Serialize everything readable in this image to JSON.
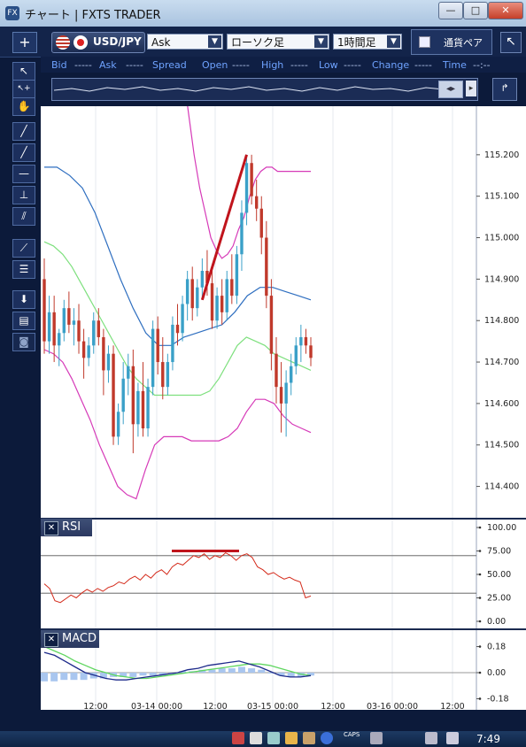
{
  "window": {
    "title": "チャート | FXTS TRADER",
    "app_icon": "FX",
    "min_label": "—",
    "max_label": "□",
    "close_label": "✕"
  },
  "toolbar": {
    "add_label": "+",
    "symbol": "USD/JPY",
    "price_type": "Ask",
    "chart_type": "ローソク足",
    "timeframe": "1時間足",
    "currency_label": "通貨ペア",
    "detach_label": "↖"
  },
  "quote": {
    "bid_label": "Bid",
    "bid_value": "-----",
    "ask_label": "Ask",
    "ask_value": "-----",
    "spread_label": "Spread",
    "open_label": "Open",
    "open_value": "-----",
    "high_label": "High",
    "high_value": "-----",
    "low_label": "Low",
    "low_value": "-----",
    "change_label": "Change",
    "change_value": "-----",
    "time_label": "Time",
    "time_value": "--:--"
  },
  "sidebar": {
    "tools": [
      "↖",
      "↖+",
      "✋",
      "╱",
      "╱",
      "—",
      "⊥",
      "⫽",
      "⟋",
      "☰",
      "⬇",
      "▤",
      "◙"
    ]
  },
  "panes": {
    "rsi_label": "RSI",
    "macd_label": "MACD",
    "close_label": "✕"
  },
  "taskbar": {
    "caps": "CAPS",
    "time": "7:49"
  },
  "colors": {
    "bull": "#3aa0c8",
    "bear": "#c0392b",
    "bb_outer": "#d63ab8",
    "bb_mid": "#7ee07e",
    "ma": "#2f6fc0",
    "rsi": "#d42a1a",
    "macd": "#1d2a8a",
    "signal": "#5fd65f",
    "hist": "#a9c6ef"
  },
  "chart_data": [
    {
      "type": "candlestick",
      "symbol": "USD/JPY",
      "timeframe": "1時間足",
      "y_ticks": [
        "115.200",
        "115.100",
        "115.000",
        "114.900",
        "114.800",
        "114.700",
        "114.600",
        "114.500",
        "114.400"
      ],
      "ylim": [
        114.35,
        115.3
      ],
      "x_ticks": [
        "12:00",
        "03-14 00:00",
        "12:00",
        "03-15 00:00",
        "12:00",
        "03-16 00:00",
        "12:00"
      ],
      "candles": [
        [
          114.9,
          114.95,
          114.72,
          114.75
        ],
        [
          114.75,
          114.86,
          114.72,
          114.82
        ],
        [
          114.82,
          114.86,
          114.7,
          114.74
        ],
        [
          114.74,
          114.78,
          114.69,
          114.77
        ],
        [
          114.77,
          114.85,
          114.75,
          114.83
        ],
        [
          114.83,
          114.87,
          114.77,
          114.79
        ],
        [
          114.79,
          114.83,
          114.74,
          114.8
        ],
        [
          114.8,
          114.84,
          114.72,
          114.75
        ],
        [
          114.75,
          114.78,
          114.66,
          114.71
        ],
        [
          114.71,
          114.76,
          114.69,
          114.74
        ],
        [
          114.74,
          114.82,
          114.72,
          114.8
        ],
        [
          114.8,
          114.83,
          114.74,
          114.76
        ],
        [
          114.76,
          114.78,
          114.62,
          114.68
        ],
        [
          114.68,
          114.74,
          114.65,
          114.72
        ],
        [
          114.72,
          114.74,
          114.5,
          114.52
        ],
        [
          114.52,
          114.6,
          114.5,
          114.58
        ],
        [
          114.58,
          114.7,
          114.55,
          114.66
        ],
        [
          114.66,
          114.72,
          114.62,
          114.69
        ],
        [
          114.69,
          114.73,
          114.48,
          114.55
        ],
        [
          114.55,
          114.65,
          114.52,
          114.63
        ],
        [
          114.63,
          114.7,
          114.52,
          114.54
        ],
        [
          114.54,
          114.66,
          114.52,
          114.64
        ],
        [
          114.64,
          114.8,
          114.62,
          114.78
        ],
        [
          114.78,
          114.81,
          114.67,
          114.7
        ],
        [
          114.7,
          114.76,
          114.61,
          114.64
        ],
        [
          114.64,
          114.72,
          114.62,
          114.7
        ],
        [
          114.7,
          114.81,
          114.68,
          114.79
        ],
        [
          114.79,
          114.84,
          114.74,
          114.77
        ],
        [
          114.77,
          114.86,
          114.75,
          114.84
        ],
        [
          114.84,
          114.92,
          114.8,
          114.9
        ],
        [
          114.9,
          114.93,
          114.8,
          114.83
        ],
        [
          114.83,
          114.9,
          114.81,
          114.88
        ],
        [
          114.88,
          114.95,
          114.85,
          114.92
        ],
        [
          114.92,
          114.97,
          114.86,
          114.89
        ],
        [
          114.89,
          114.93,
          114.78,
          114.8
        ],
        [
          114.8,
          114.88,
          114.78,
          114.86
        ],
        [
          114.86,
          114.9,
          114.79,
          114.82
        ],
        [
          114.82,
          114.92,
          114.8,
          114.9
        ],
        [
          114.9,
          114.96,
          114.84,
          114.86
        ],
        [
          114.86,
          114.98,
          114.84,
          114.96
        ],
        [
          114.96,
          115.09,
          114.92,
          115.06
        ],
        [
          115.06,
          115.2,
          115.03,
          115.18
        ],
        [
          115.18,
          115.2,
          115.08,
          115.1
        ],
        [
          115.1,
          115.14,
          115.04,
          115.07
        ],
        [
          115.07,
          115.1,
          114.96,
          115.0
        ],
        [
          115.0,
          115.04,
          114.83,
          114.86
        ],
        [
          114.86,
          114.9,
          114.68,
          114.72
        ],
        [
          114.72,
          114.76,
          114.6,
          114.64
        ],
        [
          114.64,
          114.7,
          114.53,
          114.6
        ],
        [
          114.6,
          114.68,
          114.52,
          114.65
        ],
        [
          114.65,
          114.72,
          114.62,
          114.69
        ],
        [
          114.69,
          114.76,
          114.67,
          114.74
        ],
        [
          114.74,
          114.79,
          114.7,
          114.76
        ],
        [
          114.76,
          114.78,
          114.72,
          114.74
        ],
        [
          114.74,
          114.76,
          114.69,
          114.71
        ]
      ],
      "upper_band": [
        null,
        null,
        null,
        null,
        null,
        null,
        null,
        null,
        null,
        null,
        null,
        null,
        null,
        null,
        null,
        null,
        115.5,
        115.4,
        115.3,
        115.2,
        115.12,
        115.06,
        115.0,
        114.97,
        114.95,
        114.96,
        114.98,
        115.02,
        115.05,
        115.1,
        115.14,
        115.16,
        115.17,
        115.17,
        115.16,
        115.16,
        115.16,
        115.16,
        115.16,
        115.16,
        115.16
      ],
      "lower_band": [
        114.73,
        114.72,
        114.7,
        114.66,
        114.61,
        114.56,
        114.5,
        114.45,
        114.4,
        114.38,
        114.37,
        114.44,
        114.5,
        114.52,
        114.52,
        114.52,
        114.51,
        114.51,
        114.51,
        114.51,
        114.52,
        114.54,
        114.58,
        114.61,
        114.61,
        114.6,
        114.57,
        114.55,
        114.54,
        114.53
      ],
      "middle_band": [
        114.99,
        114.98,
        114.96,
        114.93,
        114.89,
        114.85,
        114.81,
        114.77,
        114.73,
        114.69,
        114.66,
        114.64,
        114.62,
        114.62,
        114.62,
        114.62,
        114.62,
        114.62,
        114.63,
        114.66,
        114.7,
        114.74,
        114.76,
        114.75,
        114.74,
        114.72,
        114.71,
        114.7,
        114.69,
        114.68
      ],
      "moving_average": [
        115.17,
        115.17,
        115.15,
        115.12,
        115.06,
        114.98,
        114.9,
        114.83,
        114.77,
        114.74,
        114.74,
        114.76,
        114.77,
        114.78,
        114.79,
        114.82,
        114.86,
        114.88,
        114.88,
        114.87,
        114.86,
        114.85
      ]
    },
    {
      "type": "line",
      "name": "RSI",
      "y_ticks": [
        "100.00",
        "75.00",
        "50.00",
        "25.00",
        "0.00"
      ],
      "ylim": [
        0,
        100
      ],
      "levels": [
        70,
        30
      ],
      "values": [
        40,
        35,
        22,
        20,
        24,
        28,
        25,
        30,
        34,
        31,
        35,
        32,
        36,
        38,
        42,
        40,
        45,
        48,
        44,
        50,
        46,
        52,
        55,
        50,
        58,
        62,
        60,
        65,
        70,
        68,
        72,
        66,
        70,
        68,
        73,
        70,
        65,
        70,
        72,
        68,
        58,
        55,
        50,
        52,
        48,
        45,
        47,
        44,
        42,
        25,
        27
      ]
    },
    {
      "type": "line",
      "name": "MACD",
      "y_ticks": [
        "0.18",
        "0.00",
        "-0.18"
      ],
      "ylim": [
        -0.22,
        0.22
      ],
      "macd": [
        0.14,
        0.12,
        0.08,
        0.04,
        0.0,
        -0.02,
        -0.04,
        -0.05,
        -0.05,
        -0.04,
        -0.03,
        -0.02,
        -0.01,
        0.0,
        0.02,
        0.03,
        0.05,
        0.06,
        0.07,
        0.08,
        0.06,
        0.04,
        0.01,
        -0.02,
        -0.03,
        -0.03,
        -0.02
      ],
      "signal": [
        0.18,
        0.15,
        0.12,
        0.08,
        0.05,
        0.02,
        0.0,
        -0.02,
        -0.03,
        -0.04,
        -0.04,
        -0.03,
        -0.02,
        -0.01,
        0.0,
        0.01,
        0.02,
        0.03,
        0.04,
        0.05,
        0.06,
        0.06,
        0.05,
        0.03,
        0.01,
        -0.01,
        -0.02
      ],
      "histogram": [
        -0.06,
        -0.06,
        -0.05,
        -0.05,
        -0.05,
        -0.04,
        -0.04,
        -0.03,
        -0.03,
        -0.03,
        -0.02,
        -0.02,
        -0.02,
        -0.01,
        0.01,
        0.01,
        0.02,
        0.02,
        0.03,
        0.03,
        0.04,
        0.03,
        0.02,
        0.0,
        -0.02,
        -0.03,
        -0.03,
        -0.02
      ]
    }
  ]
}
